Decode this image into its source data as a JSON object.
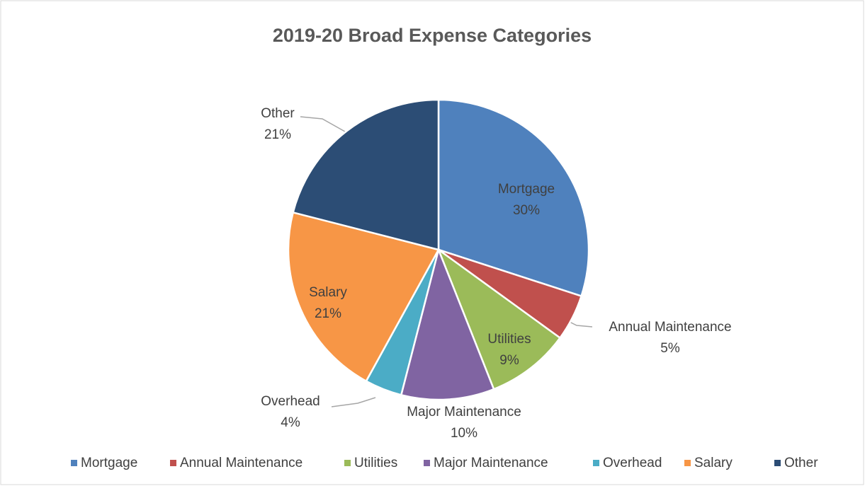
{
  "chart_data": {
    "type": "pie",
    "title": "2019-20 Broad Expense Categories",
    "categories": [
      "Mortgage",
      "Annual Maintenance",
      "Utilities",
      "Major Maintenance",
      "Overhead",
      "Salary",
      "Other"
    ],
    "values": [
      30,
      5,
      9,
      10,
      4,
      21,
      21
    ],
    "value_labels": [
      "30%",
      "5%",
      "9%",
      "10%",
      "4%",
      "21%",
      "21%"
    ],
    "colors": [
      "#4f81bd",
      "#c0504d",
      "#9bbb59",
      "#8064a2",
      "#4bacc6",
      "#f79646",
      "#2c4d75"
    ],
    "legend": "bottom"
  }
}
